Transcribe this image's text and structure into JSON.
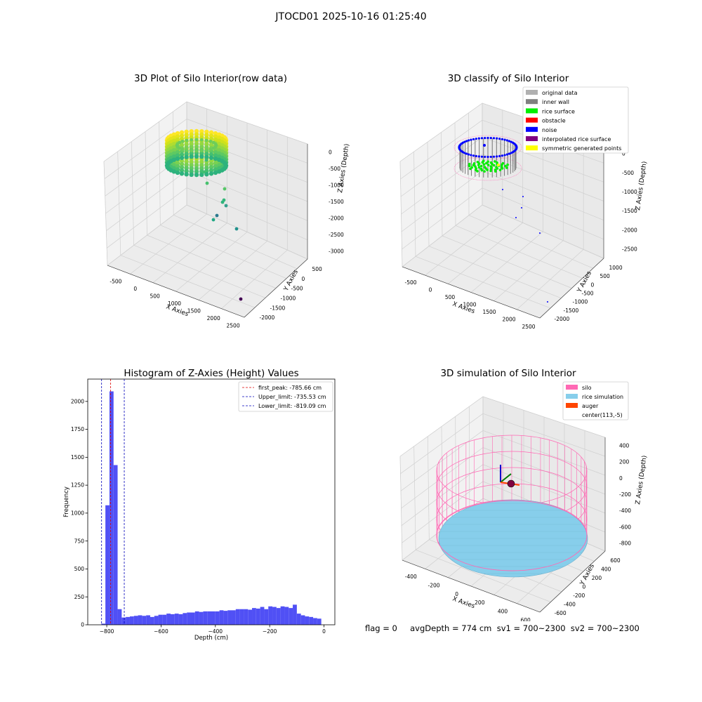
{
  "suptitle": "JTOCD01 2025-10-16 01:25:40",
  "footer": "flag = 0     avgDepth = 774 cm  sv1 = 700~2300  sv2 = 700~2300",
  "colors": {
    "histogram_bar": "#5050f5",
    "first_peak_line": "#dd0000",
    "limit_line": "#0000bb",
    "silo": "#ff69b4",
    "rice_simulation": "#87ceeb",
    "auger": "#ff4500",
    "original_data": "#b0b0b0",
    "inner_wall": "#808080",
    "rice_surface": "#00ee00",
    "obstacle": "#ff0000",
    "noise": "#0000ff",
    "interpolated_rice_surface": "#800080",
    "symmetric_generated_points": "#ffff00"
  },
  "chart_data": [
    {
      "type": "scatter",
      "projection": "3d",
      "title": "3D Plot of Silo Interior(row data)",
      "xlabel": "X Axies",
      "ylabel": "Y Axies",
      "zlabel": "Z Axies (Depth)",
      "x_ticks": [
        "-500",
        "0",
        "500",
        "1000",
        "1500",
        "2000",
        "2500"
      ],
      "y_ticks": [
        "500",
        "0",
        "-500",
        "-1000",
        "-1500",
        "-2000"
      ],
      "z_ticks": [
        "0",
        "-500",
        "-1000",
        "-1500",
        "-2000",
        "-2500",
        "-3000"
      ],
      "colormap": "viridis",
      "outlier_points": [
        {
          "x": 700,
          "y": -300,
          "z": -1100
        },
        {
          "x": 750,
          "y": -350,
          "z": -1300
        },
        {
          "x": 1100,
          "y": -500,
          "z": -1700
        },
        {
          "x": 1050,
          "y": -500,
          "z": -2000
        },
        {
          "x": 1080,
          "y": -550,
          "z": -2050
        },
        {
          "x": 1100,
          "y": -600,
          "z": -2150
        },
        {
          "x": 950,
          "y": -600,
          "z": -2400
        },
        {
          "x": 950,
          "y": -620,
          "z": -2500
        },
        {
          "x": 1500,
          "y": -800,
          "z": -2700
        },
        {
          "x": 2500,
          "y": -1900,
          "z": -2900
        }
      ]
    },
    {
      "type": "scatter",
      "projection": "3d",
      "title": "3D classify of Silo Interior",
      "xlabel": "X Axies",
      "ylabel": "Y Axies",
      "zlabel": "Z Axies (Depth)",
      "x_ticks": [
        "-500",
        "0",
        "500",
        "1000",
        "1500",
        "2000",
        "2500"
      ],
      "y_ticks": [
        "1000",
        "500",
        "0",
        "-500",
        "-1000",
        "-1500",
        "-2000"
      ],
      "z_ticks": [
        "0",
        "-500",
        "-1000",
        "-1500",
        "-2000",
        "-2500"
      ],
      "legend": [
        "original data",
        "inner wall",
        "rice surface",
        "obstacle",
        "noise",
        "interpolated rice surface",
        "symmetric generated points"
      ],
      "legend_location": "upper right"
    },
    {
      "type": "bar",
      "title": "Histogram of Z-Axies (Height) Values",
      "xlabel": "Depth (cm)",
      "ylabel": "Frequency",
      "xlim": [
        -870,
        40
      ],
      "ylim": [
        0,
        2200
      ],
      "x_ticks": [
        -800,
        -600,
        -400,
        -200,
        0
      ],
      "y_ticks": [
        0,
        250,
        500,
        750,
        1000,
        1250,
        1500,
        1750,
        2000
      ],
      "bin_width": 15,
      "bins_left": [
        -820,
        -805,
        -790,
        -775,
        -760,
        -745,
        -730,
        -715,
        -700,
        -685,
        -670,
        -655,
        -640,
        -625,
        -610,
        -595,
        -580,
        -565,
        -550,
        -535,
        -520,
        -505,
        -490,
        -475,
        -460,
        -445,
        -430,
        -415,
        -400,
        -385,
        -370,
        -355,
        -340,
        -325,
        -310,
        -295,
        -280,
        -265,
        -250,
        -235,
        -220,
        -205,
        -190,
        -175,
        -160,
        -145,
        -130,
        -115,
        -100,
        -85,
        -70,
        -55,
        -40,
        -25
      ],
      "values": [
        10,
        1070,
        2090,
        1430,
        140,
        65,
        70,
        75,
        80,
        85,
        80,
        85,
        70,
        80,
        90,
        90,
        100,
        95,
        100,
        95,
        105,
        110,
        110,
        120,
        115,
        120,
        120,
        120,
        120,
        130,
        125,
        130,
        130,
        140,
        140,
        140,
        135,
        150,
        145,
        160,
        140,
        165,
        160,
        150,
        165,
        160,
        150,
        180,
        100,
        85,
        75,
        70,
        60,
        55
      ],
      "vlines": [
        {
          "label": "first_peak: -785.66 cm",
          "x": -785.66,
          "color": "#dd0000"
        },
        {
          "label": "Upper_limit: -735.53 cm",
          "x": -735.53,
          "color": "#0000bb"
        },
        {
          "label": "Lower_limit: -819.09 cm",
          "x": -819.09,
          "color": "#0000bb"
        }
      ],
      "legend_location": "upper right"
    },
    {
      "type": "scatter",
      "projection": "3d",
      "title": "3D simulation of Silo Interior",
      "xlabel": "X Axies",
      "ylabel": "Y Axies",
      "zlabel": "Z Axies (Depth)",
      "x_ticks": [
        "-400",
        "-200",
        "0",
        "200",
        "400",
        "600"
      ],
      "y_ticks": [
        "600",
        "400",
        "200",
        "0",
        "-200",
        "-400",
        "-600"
      ],
      "z_ticks": [
        "400",
        "200",
        "0",
        "-200",
        "-400",
        "-600",
        "-800"
      ],
      "legend": [
        "silo",
        "rice simulation",
        "auger",
        "center(113,-5)"
      ],
      "legend_location": "upper right"
    }
  ]
}
